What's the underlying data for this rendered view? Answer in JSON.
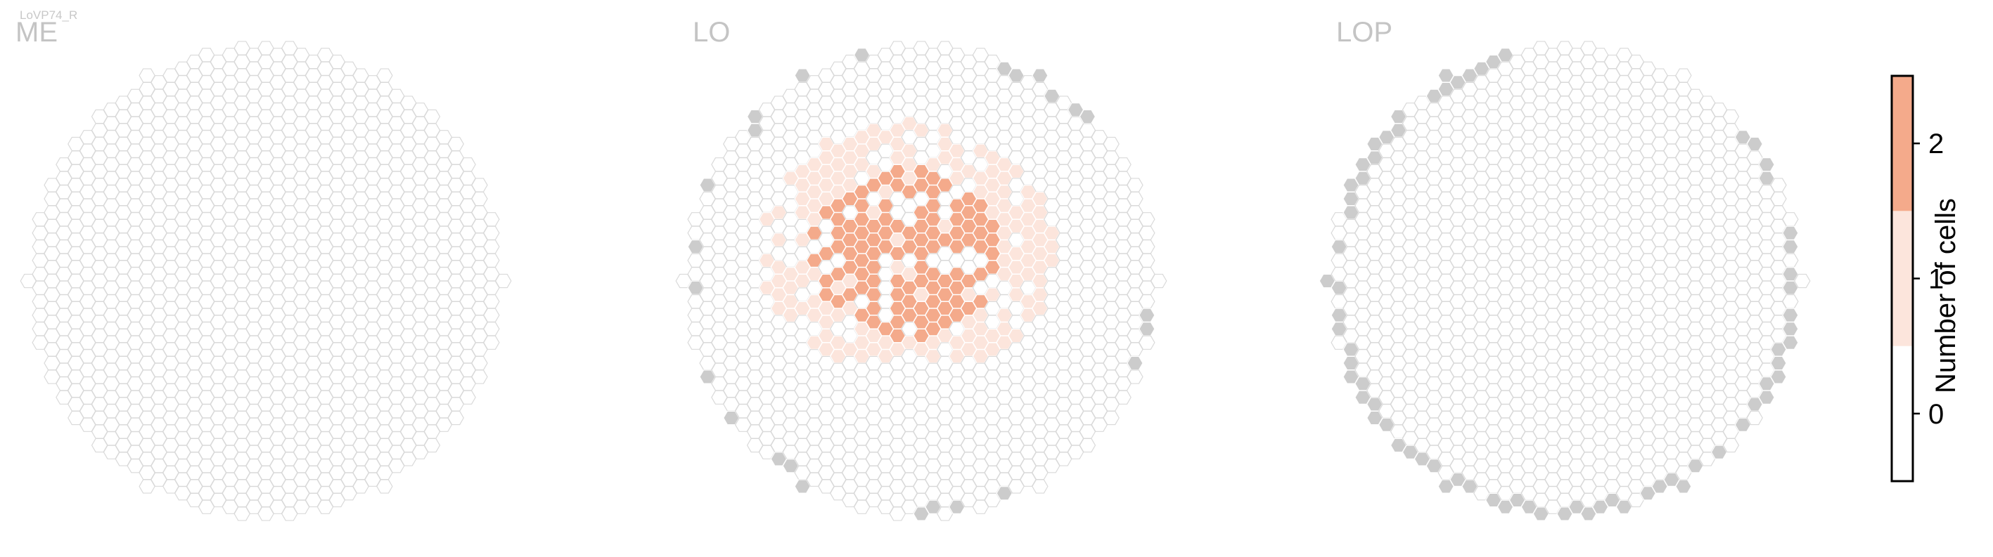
{
  "figure": {
    "small_title": "LoVP74_R"
  },
  "colors": {
    "empty_fill": "#ffffff",
    "empty_stroke": "#d9d9d9",
    "edge_fill": "#cccccc",
    "one": "#fce5dc",
    "two": "#f4aa8b",
    "cell_stroke": "#ffffff",
    "colorbar_border": "#000000"
  },
  "chart_data": [
    {
      "type": "heatmap",
      "grid": "hexagonal columns",
      "title": "ME",
      "cell_values": "all 0 (no cells)",
      "edge_columns": "none"
    },
    {
      "type": "heatmap",
      "grid": "hexagonal columns",
      "title": "LO",
      "cell_values": "0, 1 and 2; cells with 1–2 concentrated in the upper-left/central region",
      "edge_columns": "grey columns along the rim"
    },
    {
      "type": "heatmap",
      "grid": "hexagonal columns",
      "title": "LOP",
      "cell_values": "all 0 (no cells)",
      "edge_columns": "grey columns along the rim"
    },
    {
      "type": "colorbar",
      "label": "Number of cells",
      "ticks": [
        "0",
        "1",
        "2"
      ],
      "range": [
        -0.5,
        2.5
      ],
      "levels": [
        {
          "value": 0,
          "color": "#ffffff"
        },
        {
          "value": 1,
          "color": "#fce5dc"
        },
        {
          "value": 2,
          "color": "#f4aa8b"
        }
      ]
    }
  ]
}
